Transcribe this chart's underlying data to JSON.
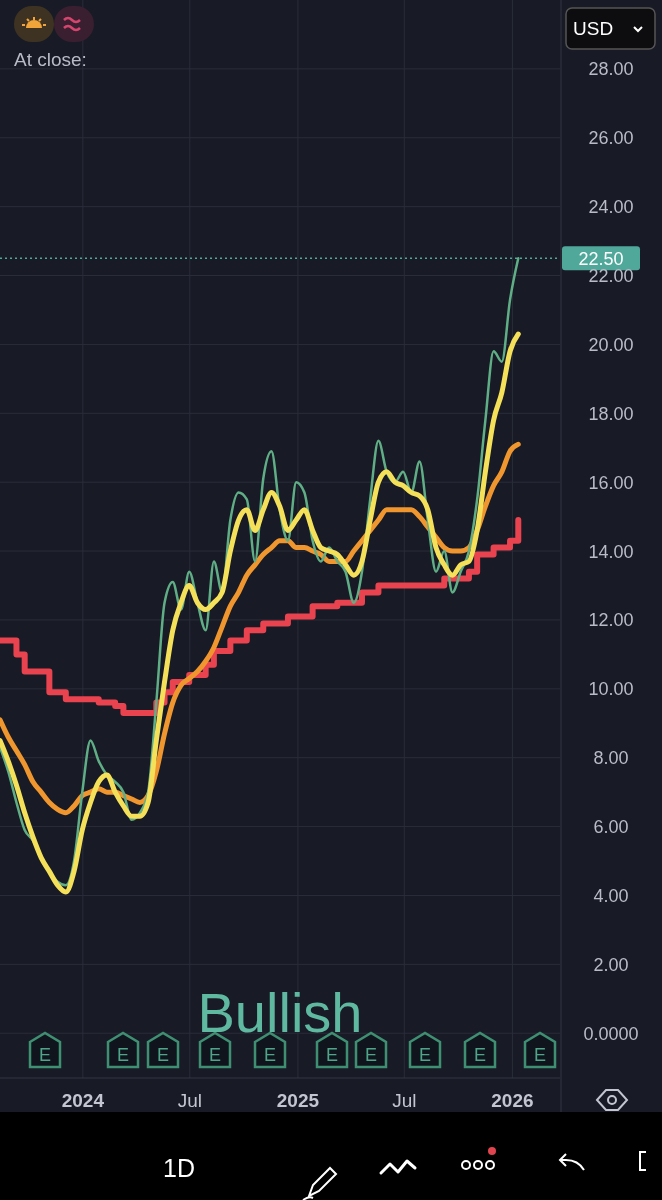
{
  "chart_data": {
    "type": "line",
    "x": [
      "2023-08-13",
      "2023-08-27",
      "2023-09-10",
      "2023-09-24",
      "2023-10-08",
      "2023-10-22",
      "2023-11-05",
      "2023-11-19",
      "2023-12-03",
      "2023-12-17",
      "2023-12-31",
      "2024-01-14",
      "2024-01-28",
      "2024-02-11",
      "2024-02-25",
      "2024-03-10",
      "2024-03-24",
      "2024-04-07",
      "2024-04-21",
      "2024-05-05",
      "2024-05-19",
      "2024-06-02",
      "2024-06-16",
      "2024-06-30",
      "2024-07-14",
      "2024-07-28",
      "2024-08-11",
      "2024-08-25",
      "2024-09-08",
      "2024-09-22",
      "2024-10-06",
      "2024-10-20",
      "2024-11-03",
      "2024-11-17",
      "2024-12-01",
      "2024-12-15",
      "2024-12-29",
      "2025-01-12",
      "2025-01-26",
      "2025-02-09",
      "2025-02-23",
      "2025-03-09",
      "2025-03-23",
      "2025-04-06",
      "2025-04-20",
      "2025-05-04",
      "2025-05-18",
      "2025-06-01",
      "2025-06-15",
      "2025-06-29",
      "2025-07-13",
      "2025-07-27",
      "2025-08-10",
      "2025-08-24",
      "2025-09-07",
      "2025-09-21",
      "2025-10-05",
      "2025-10-19",
      "2025-11-02",
      "2025-11-16",
      "2025-11-30",
      "2025-12-14",
      "2025-12-28",
      "2026-01-11"
    ],
    "series": [
      {
        "type": "step",
        "color": "#e8434f",
        "values": [
          11.4,
          11.4,
          11.0,
          10.5,
          10.5,
          10.5,
          9.9,
          9.9,
          9.7,
          9.7,
          9.7,
          9.7,
          9.6,
          9.6,
          9.5,
          9.3,
          9.3,
          9.3,
          9.3,
          9.6,
          9.9,
          10.2,
          10.2,
          10.4,
          10.4,
          10.7,
          11.1,
          11.1,
          11.4,
          11.4,
          11.7,
          11.7,
          11.9,
          11.9,
          11.9,
          12.1,
          12.1,
          12.1,
          12.4,
          12.4,
          12.4,
          12.5,
          12.5,
          12.5,
          12.8,
          12.8,
          13.0,
          13.0,
          13.0,
          13.0,
          13.0,
          13.0,
          13.0,
          13.0,
          13.2,
          13.2,
          13.2,
          13.4,
          13.9,
          13.9,
          14.1,
          14.1,
          14.3,
          14.9
        ]
      },
      {
        "color": "#f0962e",
        "values": [
          9.1,
          8.6,
          8.2,
          7.8,
          7.3,
          7.0,
          6.7,
          6.5,
          6.4,
          6.6,
          6.9,
          7.0,
          7.1,
          7.0,
          7.0,
          6.9,
          6.8,
          6.7,
          6.9,
          7.6,
          8.7,
          9.6,
          10.1,
          10.3,
          10.5,
          10.8,
          11.2,
          11.8,
          12.4,
          12.8,
          13.3,
          13.6,
          13.9,
          14.1,
          14.3,
          14.3,
          14.1,
          14.1,
          14.0,
          13.9,
          13.7,
          13.7,
          13.7,
          14.0,
          14.3,
          14.6,
          14.9,
          15.2,
          15.2,
          15.2,
          15.2,
          15.0,
          14.7,
          14.4,
          14.1,
          14.0,
          14.0,
          14.1,
          14.6,
          15.3,
          15.9,
          16.3,
          16.9,
          17.1
        ]
      },
      {
        "color": "#5fae86",
        "values": [
          8.3,
          7.6,
          6.7,
          5.9,
          5.6,
          5.1,
          4.7,
          4.4,
          4.3,
          5.0,
          7.0,
          8.5,
          7.9,
          7.5,
          7.3,
          7.0,
          6.2,
          6.4,
          7.0,
          9.6,
          12.5,
          13.1,
          12.3,
          13.4,
          12.5,
          11.7,
          13.7,
          12.8,
          14.9,
          15.7,
          15.5,
          13.7,
          16.1,
          16.9,
          15.2,
          14.3,
          16.0,
          15.7,
          14.3,
          13.7,
          14.1,
          13.7,
          13.4,
          12.5,
          13.4,
          15.5,
          17.2,
          16.3,
          16.0,
          16.3,
          15.7,
          16.6,
          14.9,
          13.4,
          14.0,
          12.8,
          13.4,
          14.0,
          15.5,
          17.8,
          19.8,
          19.5,
          21.3,
          22.5
        ]
      },
      {
        "color": "#f5e05a",
        "values": [
          8.5,
          7.9,
          7.2,
          6.4,
          5.7,
          5.1,
          4.7,
          4.3,
          4.1,
          4.7,
          5.9,
          6.7,
          7.3,
          7.5,
          7.0,
          6.6,
          6.3,
          6.3,
          6.7,
          8.5,
          10.2,
          11.7,
          12.5,
          13.0,
          12.5,
          12.3,
          12.5,
          12.8,
          14.0,
          14.9,
          15.2,
          14.6,
          15.2,
          15.7,
          15.3,
          14.6,
          14.9,
          15.2,
          14.6,
          14.1,
          14.0,
          13.9,
          13.6,
          13.3,
          13.7,
          14.9,
          16.0,
          16.3,
          16.0,
          15.9,
          15.7,
          15.6,
          15.2,
          14.1,
          13.6,
          13.3,
          13.6,
          13.7,
          14.6,
          16.3,
          17.8,
          18.6,
          19.8,
          20.3
        ]
      }
    ],
    "xlim": [
      "2023-08-13",
      "2026-03-23"
    ],
    "xticks": [
      {
        "value": "2024-01-01",
        "label": "2024"
      },
      {
        "value": "2024-07-01",
        "label": "Jul"
      },
      {
        "value": "2025-01-01",
        "label": "2025"
      },
      {
        "value": "2025-07-01",
        "label": "Jul"
      },
      {
        "value": "2026-01-01",
        "label": "2026"
      }
    ],
    "ylim": [
      -1.3,
      30
    ],
    "yticks": [
      {
        "value": 0,
        "label": "0.0000"
      },
      {
        "value": 2,
        "label": "2.00"
      },
      {
        "value": 4,
        "label": "4.00"
      },
      {
        "value": 6,
        "label": "6.00"
      },
      {
        "value": 8,
        "label": "8.00"
      },
      {
        "value": 10,
        "label": "10.00"
      },
      {
        "value": 12,
        "label": "12.00"
      },
      {
        "value": 14,
        "label": "14.00"
      },
      {
        "value": 16,
        "label": "16.00"
      },
      {
        "value": 18,
        "label": "18.00"
      },
      {
        "value": 20,
        "label": "20.00"
      },
      {
        "value": 22,
        "label": "22.00"
      },
      {
        "value": 24,
        "label": "24.00"
      },
      {
        "value": 26,
        "label": "26.00"
      },
      {
        "value": 28,
        "label": "28.00"
      }
    ],
    "grid": true,
    "ref_lines": [
      {
        "axis": "y",
        "value": 22.5,
        "label": "22.50",
        "color": "#4fa89a",
        "line_style": "dotted"
      }
    ],
    "annotations": [
      "At close:",
      "Bullish",
      "USD",
      "1D",
      "E",
      "E",
      "E",
      "E",
      "E",
      "E",
      "E",
      "E",
      "E",
      "E"
    ]
  }
}
